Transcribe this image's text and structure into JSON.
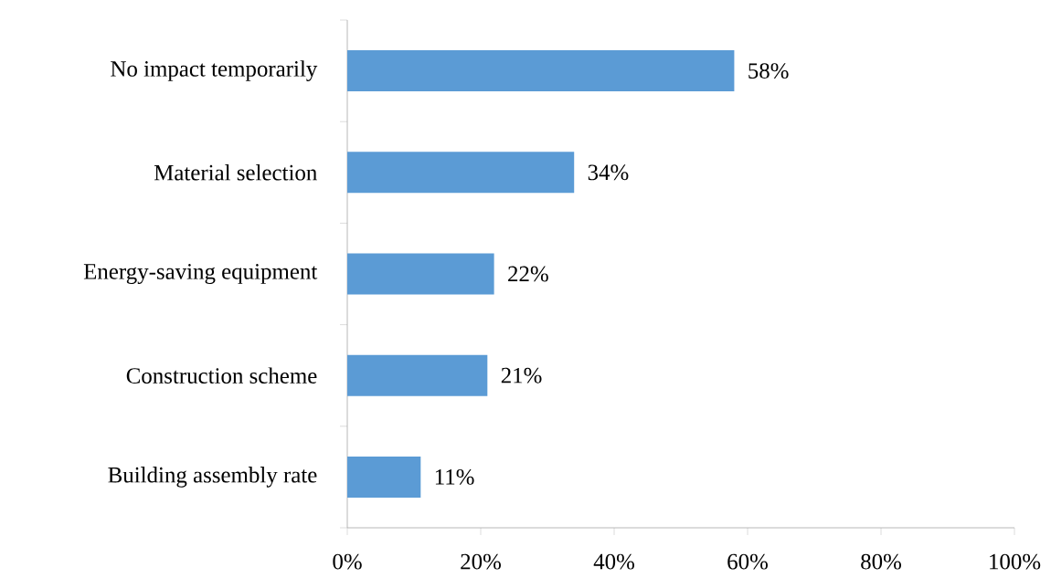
{
  "chart_data": {
    "type": "bar",
    "orientation": "horizontal",
    "categories": [
      "No impact temporarily",
      "Material selection",
      "Energy-saving equipment",
      "Construction scheme",
      "Building assembly rate"
    ],
    "values": [
      58,
      34,
      22,
      21,
      11
    ],
    "value_labels": [
      "58%",
      "34%",
      "22%",
      "21%",
      "11%"
    ],
    "color": "#5b9bd5",
    "xlim": [
      0,
      100
    ],
    "xticks": [
      {
        "value": 0,
        "label": "0%"
      },
      {
        "value": 20,
        "label": "20%"
      },
      {
        "value": 40,
        "label": "40%"
      },
      {
        "value": 60,
        "label": "60%"
      },
      {
        "value": 80,
        "label": "80%"
      },
      {
        "value": 100,
        "label": "100%"
      }
    ],
    "grid": false
  }
}
